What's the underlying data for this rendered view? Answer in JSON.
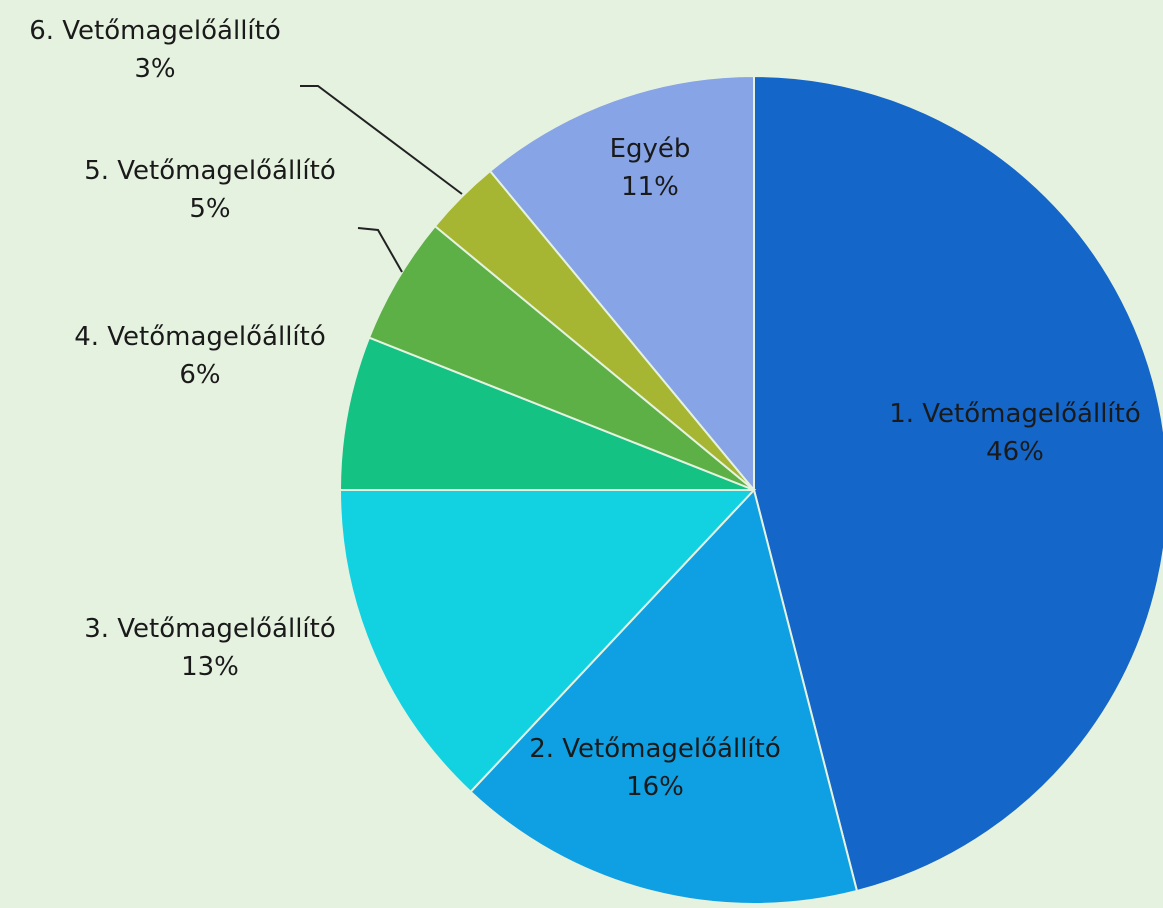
{
  "chart_data": {
    "type": "pie",
    "categories": [
      "1. Vetőmagelőállító",
      "2. Vetőmagelőállító",
      "3. Vetőmagelőállító",
      "4. Vetőmagelőállító",
      "5. Vetőmagelőállító",
      "6. Vetőmagelőállító",
      "Egyéb"
    ],
    "values": [
      46,
      16,
      13,
      6,
      5,
      3,
      11
    ],
    "value_labels": [
      "46%",
      "16%",
      "13%",
      "6%",
      "5%",
      "3%",
      "11%"
    ],
    "colors": [
      "#1466c8",
      "#0ea0e2",
      "#12d2e2",
      "#14c284",
      "#5cb046",
      "#a6b632",
      "#86a4e6"
    ]
  }
}
